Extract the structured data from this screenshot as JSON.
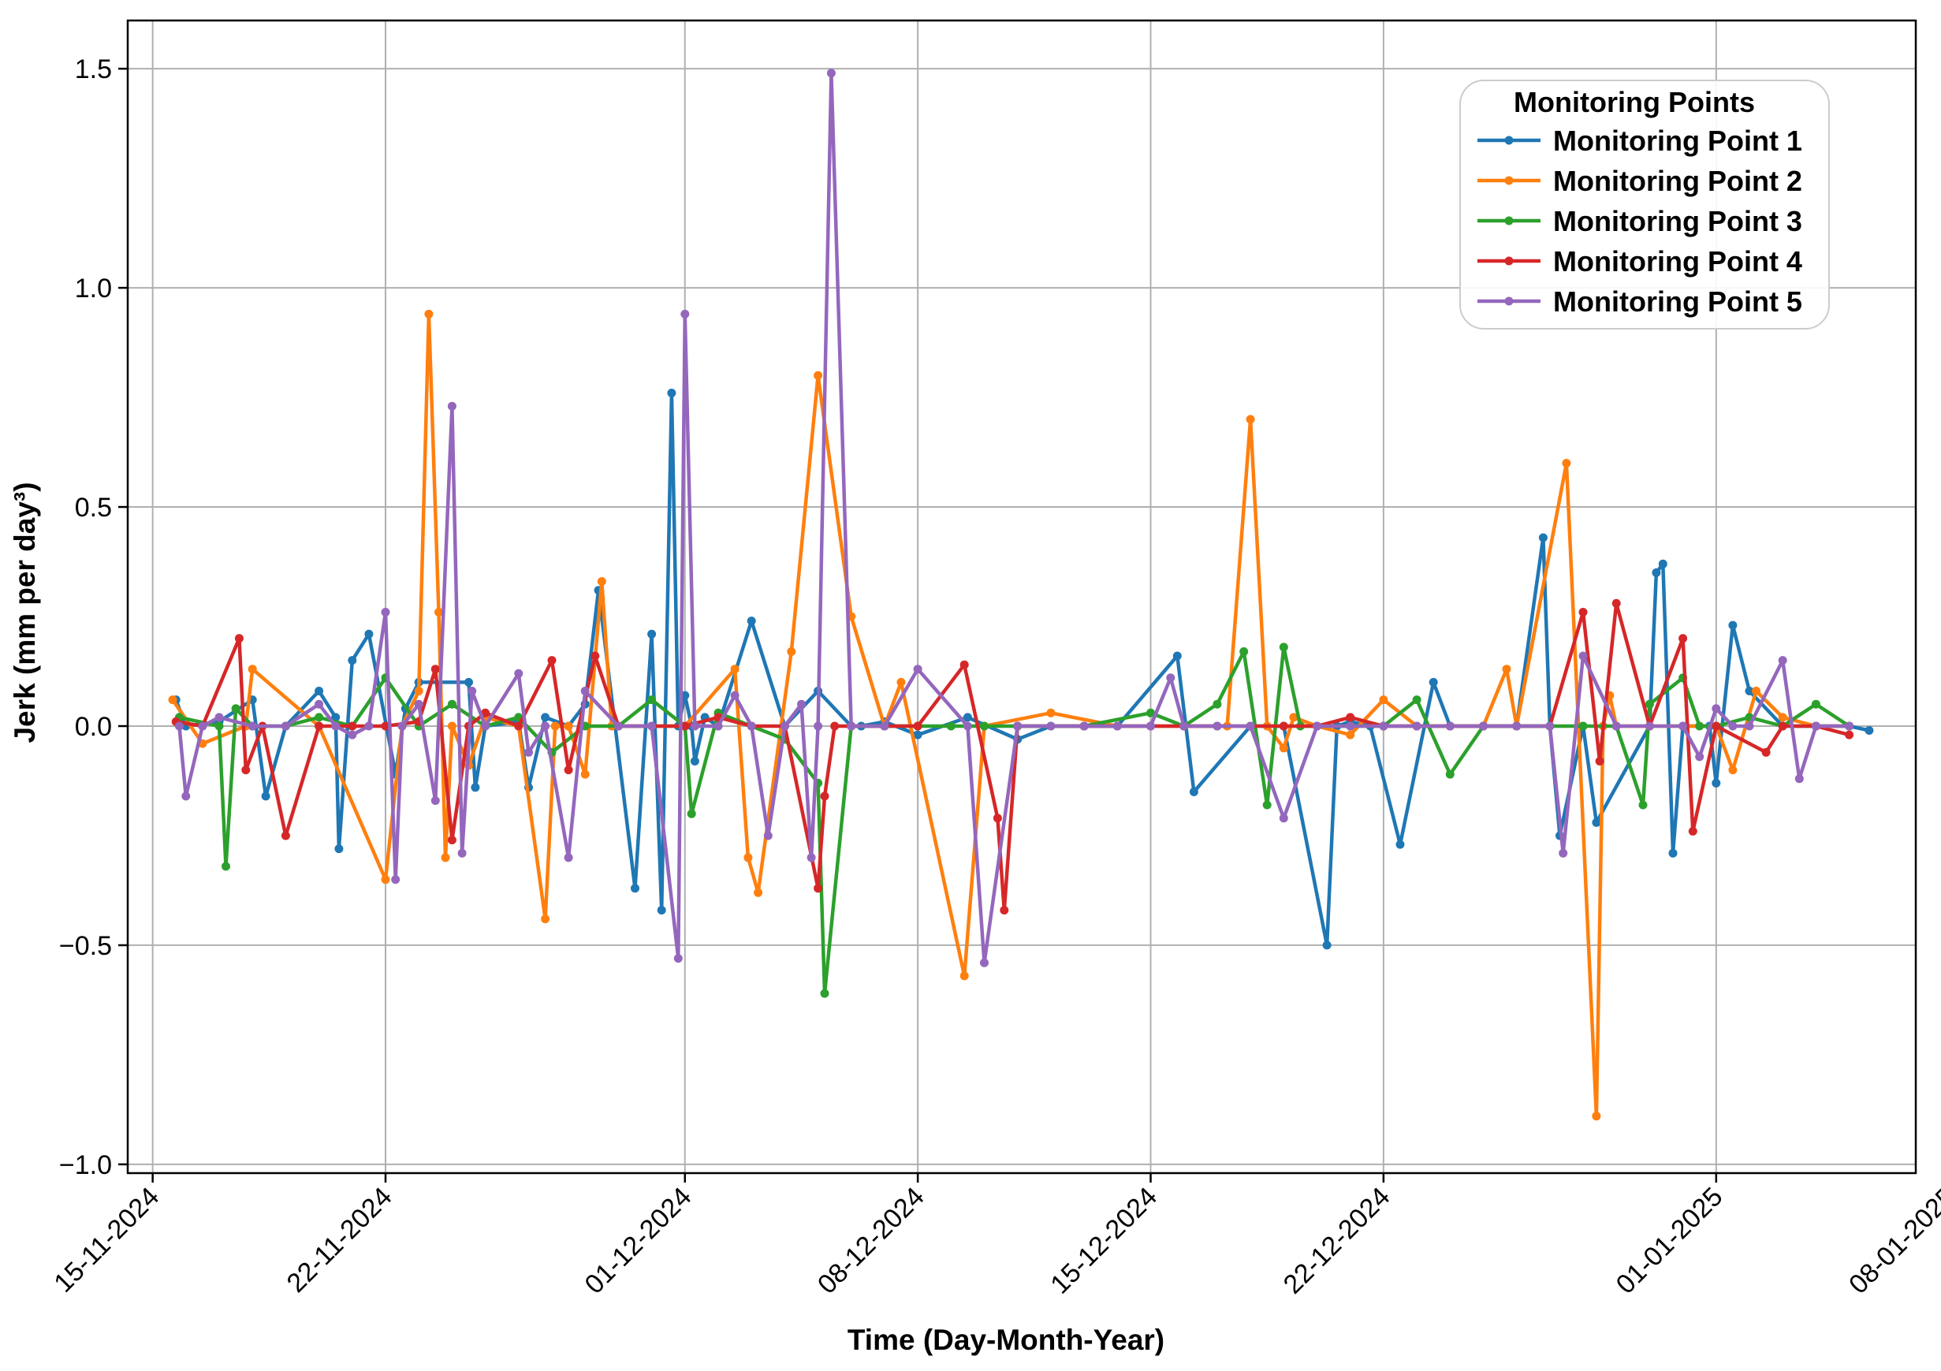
{
  "chart_data": {
    "type": "line",
    "title": "",
    "xlabel": "Time (Day-Month-Year)",
    "ylabel": "Jerk (mm per day³)",
    "x_unit": "days since 15-11-2024",
    "xlim": [
      -0.75,
      53
    ],
    "ylim": [
      -1.02,
      1.61
    ],
    "grid": true,
    "legend": {
      "title": "Monitoring Points",
      "placement": "top-right"
    },
    "x_ticks": [
      {
        "value": 0,
        "label": "15-11-2024"
      },
      {
        "value": 7,
        "label": "22-11-2024"
      },
      {
        "value": 16,
        "label": "01-12-2024"
      },
      {
        "value": 23,
        "label": "08-12-2024"
      },
      {
        "value": 30,
        "label": "15-12-2024"
      },
      {
        "value": 37,
        "label": "22-12-2024"
      },
      {
        "value": 47,
        "label": "01-01-2025"
      },
      {
        "value": 54,
        "label": "08-01-2025"
      }
    ],
    "y_ticks": [
      {
        "value": 1.5,
        "label": "1.5"
      },
      {
        "value": 1.0,
        "label": "1.0"
      },
      {
        "value": 0.5,
        "label": "0.5"
      },
      {
        "value": 0.0,
        "label": "0.0"
      },
      {
        "value": -0.5,
        "label": "−0.5"
      },
      {
        "value": -1.0,
        "label": "−1.0"
      }
    ],
    "series": [
      {
        "name": "Monitoring Point 1",
        "color": "#1f77b4",
        "x": [
          0.7,
          1.0,
          2.0,
          3.0,
          3.4,
          4.0,
          5.0,
          5.5,
          5.6,
          6.0,
          6.5,
          7.3,
          7.6,
          8.0,
          9.5,
          9.7,
          10.0,
          11.0,
          11.3,
          11.8,
          12.5,
          13.0,
          13.4,
          14.5,
          15.0,
          15.3,
          15.6,
          15.8,
          16.0,
          16.2,
          16.3,
          16.6,
          17.0,
          18.0,
          19.0,
          20.0,
          21.0,
          21.3,
          22.0,
          23.0,
          24.5,
          26.0,
          27.0,
          29.0,
          30.8,
          31.3,
          33.0,
          34.0,
          35.3,
          35.6,
          36.0,
          36.6,
          37.5,
          38.5,
          39.0,
          40.0,
          41.0,
          41.8,
          42.0,
          42.3,
          43.0,
          43.4,
          45.0,
          45.2,
          45.4,
          45.7,
          46.0,
          46.8,
          47.0,
          47.5,
          48.0,
          49.0,
          50.0,
          51.0,
          51.6
        ],
        "y": [
          0.06,
          0.0,
          0.01,
          0.06,
          -0.16,
          0.0,
          0.08,
          0.02,
          -0.28,
          0.15,
          0.21,
          -0.11,
          0.04,
          0.1,
          0.1,
          -0.14,
          0.0,
          0.01,
          -0.14,
          0.02,
          0.0,
          0.05,
          0.31,
          -0.37,
          0.21,
          -0.42,
          0.76,
          0.0,
          0.07,
          0.0,
          -0.08,
          0.02,
          0.0,
          0.24,
          0.0,
          0.08,
          0.0,
          0.0,
          0.01,
          -0.02,
          0.02,
          -0.03,
          0.0,
          0.0,
          0.16,
          -0.15,
          0.0,
          0.0,
          -0.5,
          0.0,
          0.01,
          0.0,
          -0.27,
          0.1,
          0.0,
          0.0,
          0.0,
          0.43,
          0.0,
          -0.25,
          0.0,
          -0.22,
          0.0,
          0.35,
          0.37,
          -0.29,
          0.0,
          0.0,
          -0.13,
          0.23,
          0.08,
          0.0,
          0.0,
          0.0,
          -0.01
        ]
      },
      {
        "name": "Monitoring Point 2",
        "color": "#ff7f0e",
        "x": [
          0.6,
          1.5,
          2.8,
          3.0,
          5.0,
          7.0,
          7.5,
          8.0,
          8.3,
          8.6,
          8.8,
          9.0,
          9.5,
          10.0,
          11.0,
          11.8,
          12.1,
          12.5,
          13.0,
          13.5,
          13.8,
          14.0,
          16.0,
          17.5,
          17.9,
          18.2,
          19.2,
          20.0,
          21.0,
          22.0,
          22.5,
          24.4,
          25.0,
          27.0,
          29.0,
          32.3,
          33.0,
          33.5,
          34.0,
          34.3,
          35.0,
          36.0,
          37.0,
          38.0,
          40.0,
          40.7,
          41.0,
          42.5,
          43.4,
          43.6,
          43.8,
          44.0,
          45.0,
          47.0,
          47.5,
          48.2,
          49.0,
          50.0,
          51.0
        ],
        "y": [
          0.06,
          -0.04,
          0.0,
          0.13,
          0.0,
          -0.35,
          0.0,
          0.08,
          0.94,
          0.26,
          -0.3,
          0.0,
          -0.09,
          0.02,
          0.0,
          -0.44,
          0.0,
          0.0,
          -0.11,
          0.33,
          0.0,
          0.0,
          0.0,
          0.13,
          -0.3,
          -0.38,
          0.17,
          0.8,
          0.25,
          0.0,
          0.1,
          -0.57,
          0.0,
          0.03,
          0.0,
          0.0,
          0.7,
          0.0,
          -0.05,
          0.02,
          0.0,
          -0.02,
          0.06,
          0.0,
          0.0,
          0.13,
          0.0,
          0.6,
          -0.89,
          0.0,
          0.07,
          0.0,
          0.0,
          0.0,
          -0.1,
          0.08,
          0.02,
          0.0,
          0.0
        ]
      },
      {
        "name": "Monitoring Point 3",
        "color": "#2ca02c",
        "x": [
          0.8,
          2.0,
          2.2,
          2.5,
          3.0,
          4.0,
          5.0,
          6.0,
          7.0,
          8.0,
          9.0,
          10.0,
          11.0,
          12.0,
          13.0,
          14.0,
          15.0,
          16.0,
          16.2,
          17.0,
          18.0,
          19.0,
          20.0,
          20.2,
          21.0,
          22.0,
          23.0,
          24.0,
          25.0,
          26.0,
          28.0,
          30.0,
          31.0,
          32.0,
          32.8,
          33.5,
          34.0,
          34.5,
          35.0,
          36.0,
          37.0,
          38.0,
          39.0,
          40.0,
          41.0,
          42.0,
          43.0,
          44.0,
          44.8,
          45.0,
          46.0,
          46.5,
          47.0,
          48.0,
          49.0,
          50.0,
          51.0
        ],
        "y": [
          0.02,
          0.0,
          -0.32,
          0.04,
          0.0,
          0.0,
          0.02,
          0.0,
          0.11,
          0.0,
          0.05,
          0.0,
          0.02,
          -0.06,
          0.0,
          0.0,
          0.06,
          0.0,
          -0.2,
          0.03,
          0.0,
          -0.03,
          -0.13,
          -0.61,
          0.0,
          0.0,
          0.0,
          0.0,
          0.0,
          0.0,
          0.0,
          0.03,
          0.0,
          0.05,
          0.17,
          -0.18,
          0.18,
          0.0,
          0.0,
          0.0,
          0.0,
          0.06,
          -0.11,
          0.0,
          0.0,
          0.0,
          0.0,
          0.0,
          -0.18,
          0.05,
          0.11,
          0.0,
          0.0,
          0.02,
          0.0,
          0.05,
          0.0
        ]
      },
      {
        "name": "Monitoring Point 4",
        "color": "#d62728",
        "x": [
          0.7,
          1.5,
          2.6,
          2.8,
          3.3,
          4.0,
          5.0,
          6.0,
          7.0,
          8.0,
          8.5,
          9.0,
          9.5,
          10.0,
          11.0,
          12.0,
          12.5,
          13.3,
          14.0,
          15.0,
          16.0,
          17.0,
          18.0,
          19.0,
          20.0,
          20.2,
          20.5,
          21.0,
          22.0,
          23.0,
          24.4,
          25.4,
          25.6,
          26.0,
          28.0,
          30.0,
          31.0,
          32.0,
          33.0,
          34.0,
          35.0,
          36.0,
          37.0,
          38.0,
          39.0,
          40.0,
          41.0,
          42.0,
          43.0,
          43.5,
          44.0,
          45.0,
          46.0,
          46.3,
          47.0,
          48.5,
          49.0,
          50.0,
          51.0
        ],
        "y": [
          0.01,
          0.0,
          0.2,
          -0.1,
          0.0,
          -0.25,
          0.0,
          0.0,
          0.0,
          0.01,
          0.13,
          -0.26,
          0.0,
          0.03,
          0.0,
          0.15,
          -0.1,
          0.16,
          0.0,
          0.0,
          0.0,
          0.02,
          0.0,
          0.0,
          -0.37,
          -0.16,
          0.0,
          0.0,
          0.0,
          0.0,
          0.14,
          -0.21,
          -0.42,
          0.0,
          0.0,
          0.0,
          0.0,
          0.0,
          0.0,
          0.0,
          0.0,
          0.02,
          0.0,
          0.0,
          0.0,
          0.0,
          0.0,
          0.0,
          0.26,
          -0.08,
          0.28,
          0.0,
          0.2,
          -0.24,
          0.0,
          -0.06,
          0.0,
          0.0,
          -0.02
        ]
      },
      {
        "name": "Monitoring Point 5",
        "color": "#9467bd",
        "x": [
          0.8,
          1.0,
          1.5,
          2.0,
          3.0,
          4.0,
          5.0,
          5.5,
          6.0,
          6.5,
          7.0,
          7.3,
          7.5,
          8.0,
          8.5,
          9.0,
          9.3,
          9.6,
          10.0,
          11.0,
          11.3,
          11.8,
          12.5,
          13.0,
          14.0,
          15.0,
          15.8,
          16.0,
          16.3,
          17.0,
          17.5,
          18.0,
          18.5,
          19.0,
          19.5,
          19.8,
          20.0,
          20.4,
          21.0,
          22.0,
          23.0,
          24.5,
          25.0,
          26.0,
          27.0,
          28.0,
          29.0,
          30.0,
          30.6,
          31.0,
          32.0,
          33.0,
          34.0,
          35.0,
          36.0,
          37.0,
          38.0,
          39.0,
          40.0,
          41.0,
          42.0,
          42.4,
          43.0,
          44.0,
          45.0,
          46.0,
          46.5,
          47.0,
          47.5,
          48.0,
          49.0,
          49.5,
          50.0,
          51.0
        ],
        "y": [
          0.0,
          -0.16,
          0.0,
          0.02,
          0.0,
          0.0,
          0.05,
          0.0,
          -0.02,
          0.0,
          0.26,
          -0.35,
          0.0,
          0.05,
          -0.17,
          0.73,
          -0.29,
          0.08,
          0.0,
          0.12,
          -0.06,
          0.0,
          -0.3,
          0.08,
          0.0,
          0.0,
          -0.53,
          0.94,
          0.0,
          0.0,
          0.07,
          0.0,
          -0.25,
          0.0,
          0.05,
          -0.3,
          0.0,
          1.49,
          0.0,
          0.0,
          0.13,
          0.0,
          -0.54,
          0.0,
          0.0,
          0.0,
          0.0,
          0.0,
          0.11,
          0.0,
          0.0,
          0.0,
          -0.21,
          0.0,
          0.0,
          0.0,
          0.0,
          0.0,
          0.0,
          0.0,
          0.0,
          -0.29,
          0.16,
          0.0,
          0.0,
          0.0,
          -0.07,
          0.04,
          0.0,
          0.0,
          0.15,
          -0.12,
          0.0,
          0.0
        ]
      }
    ]
  }
}
